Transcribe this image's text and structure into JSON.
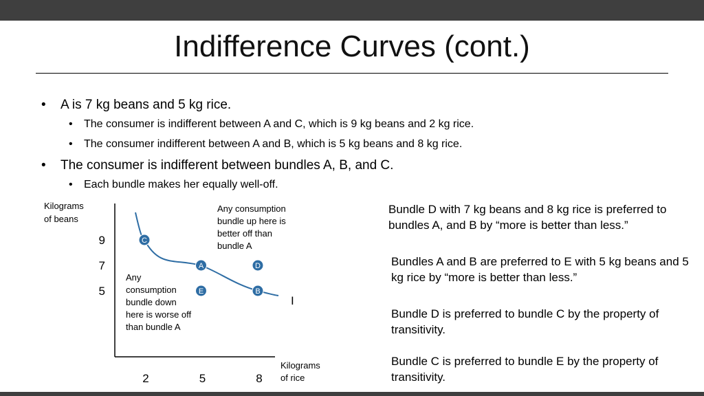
{
  "slide": {
    "title": "Indifference Curves (cont.)",
    "bullets": [
      {
        "level": 1,
        "text": "A is 7 kg beans and 5 kg rice."
      },
      {
        "level": 2,
        "text": "The consumer is indifferent between A and C, which is 9 kg beans and 2 kg rice."
      },
      {
        "level": 2,
        "text": "The consumer indifferent between A and B, which is 5 kg beans and 8 kg rice."
      },
      {
        "level": 1,
        "text": "The consumer is indifferent between bundles A, B, and C."
      },
      {
        "level": 2,
        "text": "Each bundle makes her equally well-off."
      }
    ],
    "notes": [
      "Bundle D with 7 kg beans and 8 kg rice is preferred to bundles A, and B by “more is better than less.”",
      "Bundles A and B are preferred to E with 5 kg beans and 5 kg rice by “more is better than less.”",
      "Bundle D is preferred to bundle C by the property of transitivity.",
      "Bundle C is preferred to bundle E by the property of transitivity."
    ],
    "colors": {
      "accent": "#2e6da4",
      "bar": "#3f3f3f"
    }
  },
  "chart_data": {
    "type": "scatter",
    "xlabel": [
      "Kilograms",
      "of rice"
    ],
    "ylabel": [
      "Kilograms",
      "of beans"
    ],
    "x_ticks": [
      2,
      5,
      8
    ],
    "y_ticks": [
      9,
      7,
      5
    ],
    "points": [
      {
        "label": "C",
        "x": 2,
        "y": 9
      },
      {
        "label": "A",
        "x": 5,
        "y": 7
      },
      {
        "label": "D",
        "x": 8,
        "y": 7
      },
      {
        "label": "E",
        "x": 5,
        "y": 5
      },
      {
        "label": "B",
        "x": 8,
        "y": 5
      }
    ],
    "curve": {
      "name": "I",
      "through": [
        "C",
        "A",
        "B"
      ]
    },
    "annotations": [
      {
        "text": "Any consumption bundle up here is better off than bundle A",
        "lines": [
          "Any consumption",
          "bundle up here is",
          "better off than",
          "bundle A"
        ]
      },
      {
        "text": "Any consumption bundle down here is worse off than bundle A",
        "lines": [
          "Any",
          "consumption",
          "bundle down",
          "here is worse off",
          "than bundle A"
        ]
      }
    ]
  }
}
